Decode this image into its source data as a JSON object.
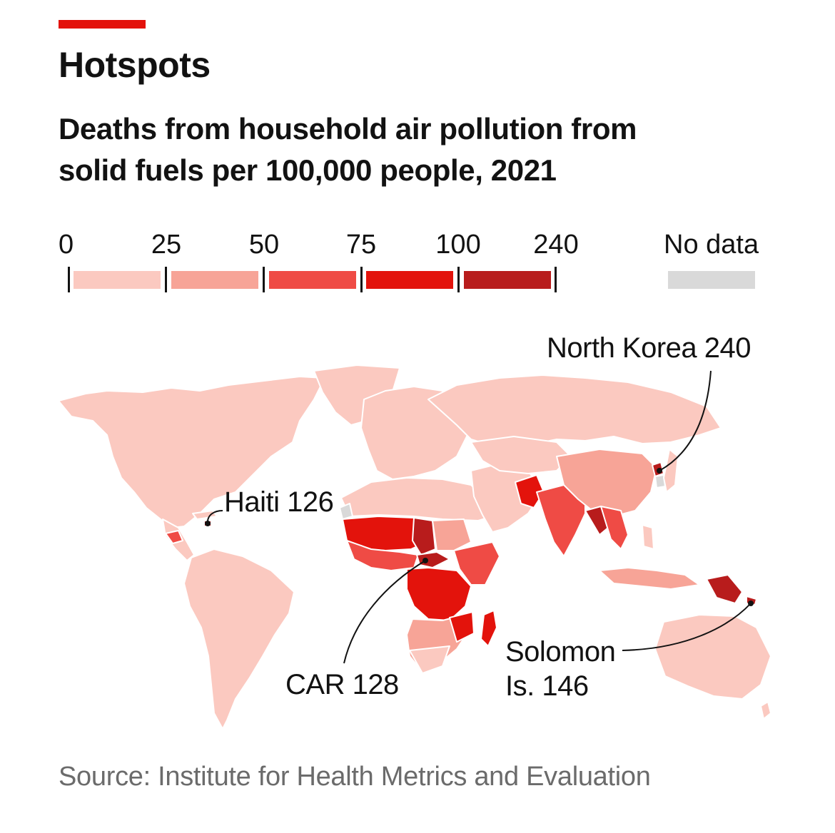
{
  "header": {
    "title": "Hotspots",
    "subtitle": "Deaths from household air pollution from solid fuels per 100,000 people, 2021"
  },
  "legend": {
    "ticks": [
      "0",
      "25",
      "50",
      "75",
      "100",
      "240"
    ],
    "bins": [
      {
        "range": "0-25",
        "color": "#fbc9c0"
      },
      {
        "range": "25-50",
        "color": "#f7a497"
      },
      {
        "range": "50-75",
        "color": "#ef4b45"
      },
      {
        "range": "75-100",
        "color": "#e3130c"
      },
      {
        "range": "100-240",
        "color": "#b81c1c"
      }
    ],
    "no_data_label": "No data",
    "no_data_color": "#d9d9d9"
  },
  "annotations": {
    "north_korea": "North Korea 240",
    "haiti": "Haiti 126",
    "car": "CAR 128",
    "solomon_line1": "Solomon",
    "solomon_line2": "Is. 146"
  },
  "chart_data": {
    "type": "heatmap",
    "title": "Hotspots",
    "subtitle": "Deaths from household air pollution from solid fuels per 100,000 people, 2021",
    "scale_breaks": [
      0,
      25,
      50,
      75,
      100,
      240
    ],
    "highlighted": [
      {
        "name": "North Korea",
        "value": 240
      },
      {
        "name": "Haiti",
        "value": 126
      },
      {
        "name": "CAR",
        "value": 128
      },
      {
        "name": "Solomon Is.",
        "value": 146
      }
    ]
  },
  "footer": {
    "source": "Source: Institute for Health Metrics and Evaluation"
  }
}
